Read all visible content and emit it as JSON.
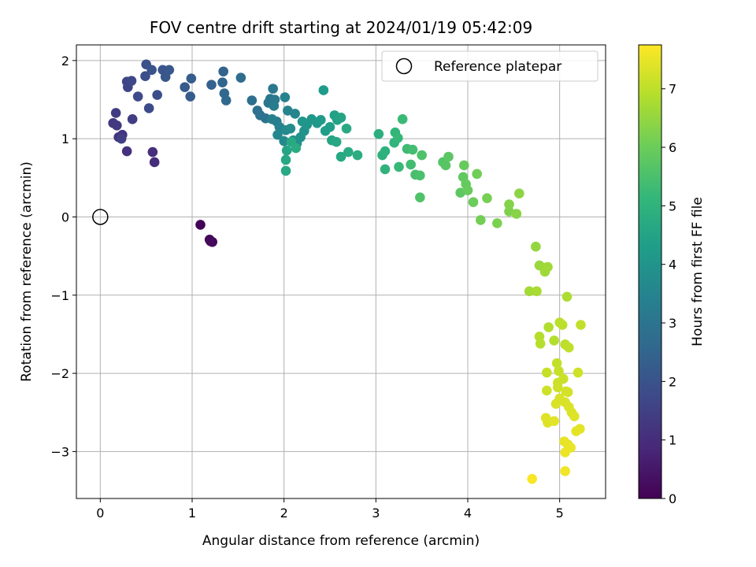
{
  "chart_data": {
    "type": "scatter",
    "title": "FOV centre drift starting at 2024/01/19 05:42:09",
    "xlabel": "Angular distance from reference (arcmin)",
    "ylabel": "Rotation from reference (arcmin)",
    "xlim": [
      -0.26,
      5.5
    ],
    "ylim": [
      -3.6,
      2.2
    ],
    "xticks": [
      0,
      1,
      2,
      3,
      4,
      5
    ],
    "xtick_labels": [
      "0",
      "1",
      "2",
      "3",
      "4",
      "5"
    ],
    "yticks": [
      -3,
      -2,
      -1,
      0,
      1,
      2
    ],
    "ytick_labels": [
      "−3",
      "−2",
      "−1",
      "0",
      "1",
      "2"
    ],
    "grid": true,
    "colormap": "viridis",
    "colorbar": {
      "label": "Hours from first FF file",
      "range": [
        0,
        7.75
      ],
      "ticks": [
        0,
        1,
        2,
        3,
        4,
        5,
        6,
        7
      ],
      "tick_labels": [
        "0",
        "1",
        "2",
        "3",
        "4",
        "5",
        "6",
        "7"
      ]
    },
    "reference": {
      "x": 0,
      "y": 0,
      "label": "Reference platepar",
      "marker": "open-circle"
    },
    "legend": {
      "entries": [
        "Reference platepar"
      ],
      "placement": "top-right"
    },
    "points_format": [
      "x",
      "y",
      "hours"
    ],
    "points": [
      [
        1.09,
        -0.1,
        0.05
      ],
      [
        1.19,
        -0.29,
        0.1
      ],
      [
        1.22,
        -0.32,
        0.15
      ],
      [
        1.2,
        -0.31,
        0.2
      ],
      [
        0.59,
        0.7,
        1.0
      ],
      [
        0.57,
        0.83,
        1.05
      ],
      [
        0.29,
        0.84,
        1.1
      ],
      [
        0.2,
        1.02,
        1.15
      ],
      [
        0.24,
        1.05,
        1.2
      ],
      [
        0.14,
        1.2,
        1.25
      ],
      [
        0.18,
        1.17,
        1.3
      ],
      [
        0.17,
        1.33,
        1.35
      ],
      [
        0.35,
        1.25,
        1.4
      ],
      [
        0.23,
        1.0,
        1.45
      ],
      [
        0.3,
        1.66,
        1.6
      ],
      [
        0.29,
        1.73,
        1.65
      ],
      [
        0.34,
        1.74,
        1.7
      ],
      [
        0.41,
        1.54,
        1.75
      ],
      [
        0.53,
        1.39,
        1.8
      ],
      [
        0.62,
        1.56,
        1.85
      ],
      [
        0.49,
        1.8,
        1.9
      ],
      [
        0.5,
        1.95,
        1.95
      ],
      [
        0.56,
        1.88,
        2.0
      ],
      [
        0.68,
        1.88,
        2.05
      ],
      [
        0.71,
        1.79,
        2.1
      ],
      [
        0.75,
        1.88,
        2.15
      ],
      [
        0.92,
        1.66,
        2.2
      ],
      [
        0.98,
        1.54,
        2.25
      ],
      [
        0.99,
        1.77,
        2.3
      ],
      [
        1.21,
        1.69,
        2.4
      ],
      [
        1.34,
        1.86,
        2.45
      ],
      [
        1.33,
        1.72,
        2.5
      ],
      [
        1.35,
        1.58,
        2.55
      ],
      [
        1.37,
        1.49,
        2.6
      ],
      [
        1.53,
        1.78,
        2.7
      ],
      [
        1.65,
        1.49,
        2.8
      ],
      [
        1.71,
        1.36,
        2.85
      ],
      [
        1.74,
        1.3,
        2.9
      ],
      [
        1.8,
        1.26,
        2.95
      ],
      [
        1.83,
        1.46,
        3.0
      ],
      [
        1.85,
        1.51,
        3.05
      ],
      [
        1.88,
        1.64,
        3.1
      ],
      [
        1.9,
        1.5,
        3.15
      ],
      [
        1.89,
        1.42,
        3.2
      ],
      [
        1.92,
        1.22,
        3.3
      ],
      [
        1.87,
        1.25,
        3.35
      ],
      [
        1.95,
        1.15,
        3.4
      ],
      [
        2.01,
        1.53,
        3.45
      ],
      [
        2.04,
        1.36,
        3.5
      ],
      [
        2.12,
        1.32,
        3.55
      ],
      [
        1.93,
        1.05,
        3.6
      ],
      [
        2.0,
        0.97,
        3.65
      ],
      [
        2.02,
        1.11,
        3.7
      ],
      [
        2.07,
        1.13,
        3.75
      ],
      [
        2.1,
        0.98,
        3.8
      ],
      [
        2.14,
        0.94,
        3.85
      ],
      [
        2.18,
        1.02,
        3.9
      ],
      [
        2.22,
        1.1,
        3.95
      ],
      [
        2.25,
        1.18,
        4.0
      ],
      [
        2.2,
        1.22,
        4.05
      ],
      [
        2.3,
        1.25,
        4.1
      ],
      [
        2.36,
        1.2,
        4.15
      ],
      [
        2.4,
        1.24,
        4.2
      ],
      [
        2.43,
        1.62,
        4.25
      ],
      [
        2.45,
        1.1,
        4.3
      ],
      [
        2.5,
        1.15,
        4.35
      ],
      [
        2.55,
        1.3,
        4.4
      ],
      [
        2.58,
        1.24,
        4.45
      ],
      [
        2.62,
        1.27,
        4.5
      ],
      [
        2.52,
        0.98,
        4.55
      ],
      [
        2.57,
        0.96,
        4.6
      ],
      [
        2.62,
        0.77,
        4.65
      ],
      [
        2.68,
        1.13,
        4.7
      ],
      [
        2.7,
        0.83,
        4.75
      ],
      [
        2.8,
        0.79,
        4.8
      ],
      [
        2.03,
        0.85,
        4.55
      ],
      [
        2.02,
        0.73,
        4.6
      ],
      [
        2.02,
        0.59,
        4.65
      ],
      [
        2.08,
        0.96,
        4.7
      ],
      [
        2.13,
        0.88,
        4.75
      ],
      [
        3.03,
        1.06,
        4.85
      ],
      [
        3.07,
        0.79,
        4.9
      ],
      [
        3.1,
        0.84,
        4.95
      ],
      [
        3.1,
        0.61,
        5.0
      ],
      [
        3.2,
        0.95,
        5.05
      ],
      [
        3.21,
        1.08,
        5.1
      ],
      [
        3.24,
        1.01,
        5.15
      ],
      [
        3.25,
        0.64,
        5.2
      ],
      [
        3.29,
        1.25,
        5.25
      ],
      [
        3.34,
        0.87,
        5.3
      ],
      [
        3.38,
        0.67,
        5.35
      ],
      [
        3.4,
        0.86,
        5.4
      ],
      [
        3.43,
        0.54,
        5.45
      ],
      [
        3.48,
        0.53,
        5.5
      ],
      [
        3.5,
        0.79,
        5.55
      ],
      [
        3.48,
        0.25,
        5.6
      ],
      [
        3.73,
        0.7,
        5.65
      ],
      [
        3.76,
        0.66,
        5.7
      ],
      [
        3.79,
        0.77,
        5.75
      ],
      [
        3.92,
        0.31,
        5.8
      ],
      [
        3.95,
        0.51,
        5.85
      ],
      [
        3.98,
        0.42,
        5.9
      ],
      [
        3.96,
        0.66,
        5.92
      ],
      [
        4.0,
        0.34,
        5.95
      ],
      [
        4.06,
        0.19,
        6.0
      ],
      [
        4.1,
        0.55,
        6.05
      ],
      [
        4.14,
        -0.04,
        6.1
      ],
      [
        4.21,
        0.24,
        6.15
      ],
      [
        4.32,
        -0.08,
        6.2
      ],
      [
        4.45,
        0.07,
        6.25
      ],
      [
        4.45,
        0.16,
        6.3
      ],
      [
        4.53,
        0.04,
        6.35
      ],
      [
        4.56,
        0.3,
        6.4
      ],
      [
        4.74,
        -0.38,
        6.5
      ],
      [
        4.78,
        -0.62,
        6.55
      ],
      [
        4.83,
        -0.65,
        6.6
      ],
      [
        4.84,
        -0.7,
        6.62
      ],
      [
        4.87,
        -0.64,
        6.65
      ],
      [
        4.67,
        -0.95,
        6.7
      ],
      [
        4.75,
        -0.95,
        6.75
      ],
      [
        5.08,
        -1.02,
        6.8
      ],
      [
        4.88,
        -1.41,
        6.85
      ],
      [
        4.94,
        -1.58,
        6.88
      ],
      [
        4.78,
        -1.53,
        6.9
      ],
      [
        4.79,
        -1.62,
        6.92
      ],
      [
        5.0,
        -1.35,
        6.95
      ],
      [
        5.03,
        -1.38,
        6.97
      ],
      [
        5.06,
        -1.63,
        7.0
      ],
      [
        5.1,
        -1.67,
        7.02
      ],
      [
        5.23,
        -1.38,
        7.05
      ],
      [
        4.97,
        -1.87,
        7.05
      ],
      [
        4.99,
        -1.97,
        7.1
      ],
      [
        4.86,
        -1.99,
        7.1
      ],
      [
        5.04,
        -2.07,
        7.15
      ],
      [
        4.98,
        -2.12,
        7.15
      ],
      [
        4.98,
        -2.18,
        7.2
      ],
      [
        4.86,
        -2.22,
        7.2
      ],
      [
        5.2,
        -1.99,
        7.2
      ],
      [
        5.07,
        -2.23,
        7.25
      ],
      [
        5.09,
        -2.24,
        7.25
      ],
      [
        5.0,
        -2.32,
        7.3
      ],
      [
        5.06,
        -2.37,
        7.3
      ],
      [
        4.96,
        -2.39,
        7.3
      ],
      [
        5.1,
        -2.43,
        7.35
      ],
      [
        5.13,
        -2.5,
        7.35
      ],
      [
        5.16,
        -2.55,
        7.4
      ],
      [
        4.85,
        -2.57,
        7.4
      ],
      [
        4.87,
        -2.63,
        7.4
      ],
      [
        4.94,
        -2.61,
        7.42
      ],
      [
        5.18,
        -2.74,
        7.45
      ],
      [
        5.22,
        -2.71,
        7.45
      ],
      [
        5.05,
        -2.87,
        7.5
      ],
      [
        5.09,
        -2.91,
        7.5
      ],
      [
        5.12,
        -2.95,
        7.52
      ],
      [
        5.06,
        -3.01,
        7.55
      ],
      [
        5.06,
        -3.25,
        7.6
      ],
      [
        4.7,
        -3.35,
        7.7
      ]
    ]
  }
}
